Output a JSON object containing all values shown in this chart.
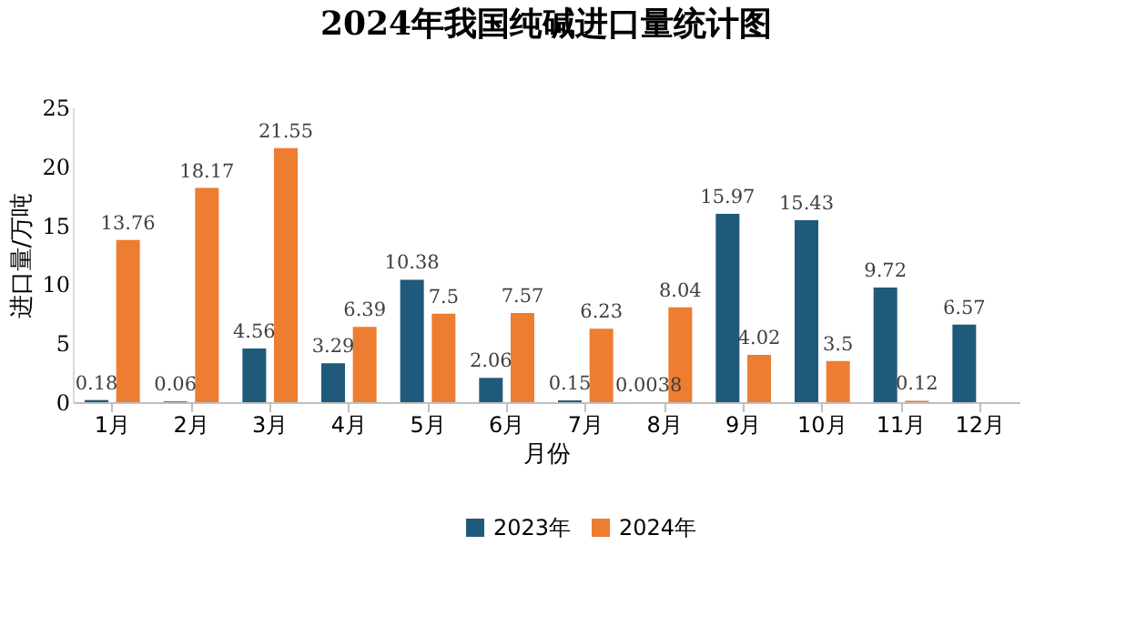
{
  "chart_data": {
    "type": "bar",
    "title": "2024年我国纯碱进口量统计图",
    "xlabel": "月份",
    "ylabel": "进口量/万吨",
    "categories": [
      "1月",
      "2月",
      "3月",
      "4月",
      "5月",
      "6月",
      "7月",
      "8月",
      "9月",
      "10月",
      "11月",
      "12月"
    ],
    "series": [
      {
        "name": "2023年",
        "color": "#1f5a7a",
        "values": [
          0.18,
          0.06,
          4.56,
          3.29,
          10.38,
          2.06,
          0.15,
          0.0038,
          15.97,
          15.43,
          9.72,
          6.57
        ]
      },
      {
        "name": "2024年",
        "color": "#ed7d31",
        "values": [
          13.76,
          18.17,
          21.55,
          6.39,
          7.5,
          7.57,
          6.23,
          8.04,
          4.02,
          3.5,
          0.12,
          null
        ]
      }
    ],
    "ylim": [
      0,
      25
    ],
    "yticks": [
      0,
      5,
      10,
      15,
      20,
      25
    ],
    "data_labels": true,
    "legend": "bottom"
  }
}
